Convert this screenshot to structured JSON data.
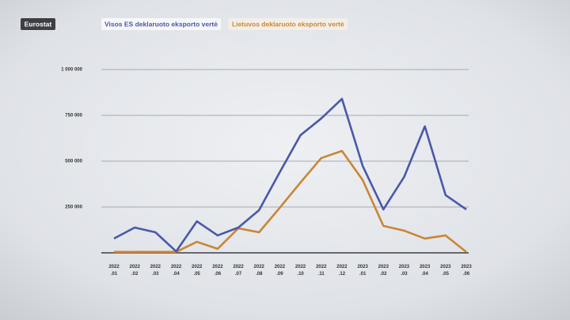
{
  "chart_data": {
    "type": "line",
    "source": "Eurostat",
    "categories": [
      "2022\n.01",
      "2022\n.02",
      "2022\n.03",
      "2022\n.04",
      "2022\n.05",
      "2022\n.06",
      "2022\n.07",
      "2022\n.08",
      "2022\n.09",
      "2022\n.10",
      "2022\n.11",
      "2022\n.12",
      "2023\n.01",
      "2023\n.02",
      "2023\n.03",
      "2023\n.04",
      "2023\n.05",
      "2023\n.06"
    ],
    "series": [
      {
        "name": "Visos ES deklaruoto eksporto vertė",
        "color": "#4a58a8",
        "values": [
          78000,
          138000,
          112000,
          8000,
          172000,
          95000,
          138000,
          233000,
          440000,
          642000,
          733000,
          840000,
          474000,
          237000,
          414000,
          690000,
          315000,
          237000
        ]
      },
      {
        "name": "Lietuvos deklaruoto eksporto vertė",
        "color": "#c98634",
        "values": [
          5000,
          5000,
          5000,
          5000,
          60000,
          22000,
          134000,
          112000,
          246000,
          384000,
          517000,
          556000,
          397000,
          147000,
          121000,
          78000,
          95000,
          5000
        ]
      }
    ],
    "ylim": [
      0,
      1000000
    ],
    "yticks": [
      {
        "value": 250000,
        "label": "250 000"
      },
      {
        "value": 500000,
        "label": "500 000"
      },
      {
        "value": 750000,
        "label": "750 000"
      },
      {
        "value": 1000000,
        "label": "1 000 000"
      }
    ],
    "grid": true
  }
}
